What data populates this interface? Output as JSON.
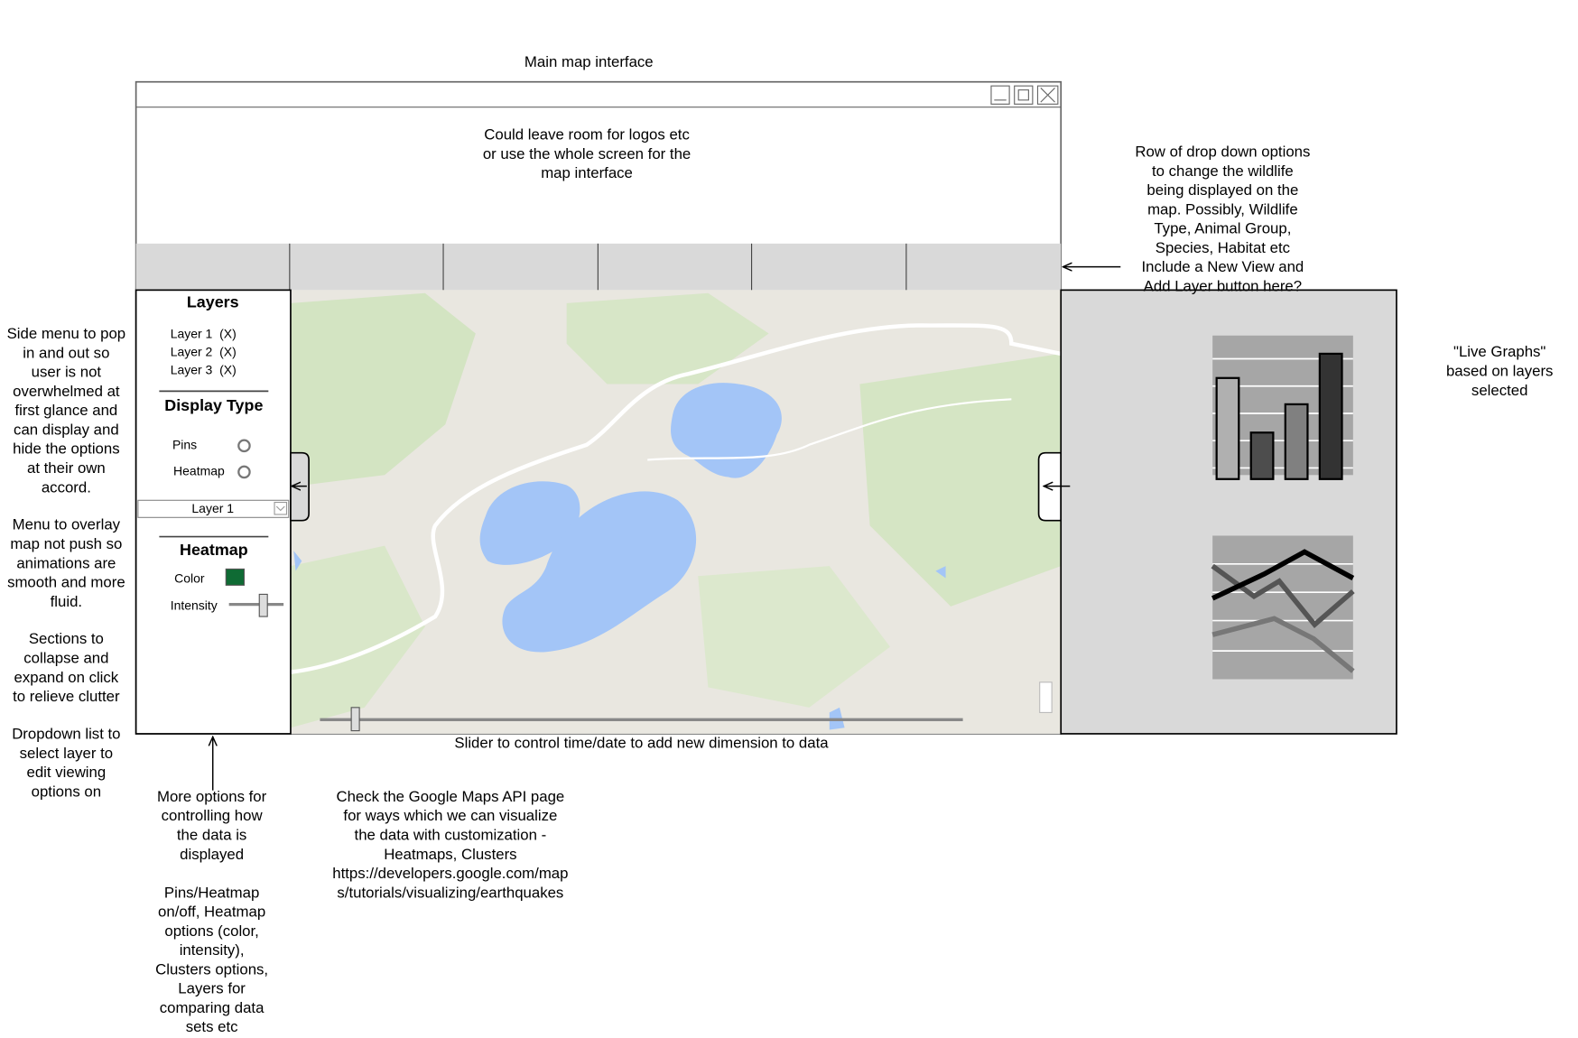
{
  "title": "Main map interface",
  "header_note": [
    "Could leave room for logos etc",
    "or use the whole screen for the",
    "map interface"
  ],
  "dropdown_note": [
    "Row of drop down options",
    "to change the wildlife",
    "being displayed on the",
    "map. Possibly, Wildlife",
    "Type, Animal Group,",
    "Species, Habitat etc",
    "Include a New View and",
    "Add Layer button here?"
  ],
  "graphs_note": [
    "\"Live Graphs\"",
    "based on layers",
    "selected"
  ],
  "slider_note": "Slider to control time/date to add new dimension to data",
  "side_notes": [
    [
      "Side menu to pop",
      "in and out so",
      "user is not",
      "overwhelmed at",
      "first glance and",
      "can display and",
      "hide the options",
      "at their own",
      "accord."
    ],
    [
      "Menu to overlay",
      "map not push so",
      "animations are",
      "smooth and more",
      "fluid."
    ],
    [
      "Sections to",
      "collapse and",
      "expand on click",
      "to relieve clutter"
    ],
    [
      "Dropdown list to",
      "select layer to",
      "edit viewing",
      "options on"
    ]
  ],
  "options_notes": [
    [
      "More options for",
      "controlling how",
      "the data is",
      "displayed"
    ],
    [
      "Pins/Heatmap",
      "on/off, Heatmap",
      "options (color,",
      "intensity),",
      "Clusters options,",
      "Layers for",
      "comparing data",
      "sets etc"
    ]
  ],
  "api_note": [
    "Check the Google Maps API page",
    "for ways which we can visualize",
    "the data with customization -",
    "Heatmaps, Clusters",
    "https://developers.google.com/map",
    "s/tutorials/visualizing/earthquakes"
  ],
  "sidebar": {
    "layers_heading": "Layers",
    "layers": [
      "Layer 1  (X)",
      "Layer 2  (X)",
      "Layer 3  (X)"
    ],
    "display_heading": "Display Type",
    "pins": "Pins",
    "heatmap": "Heatmap",
    "layer_select": "Layer 1",
    "heatmap_heading": "Heatmap",
    "color": "Color",
    "intensity": "Intensity"
  }
}
